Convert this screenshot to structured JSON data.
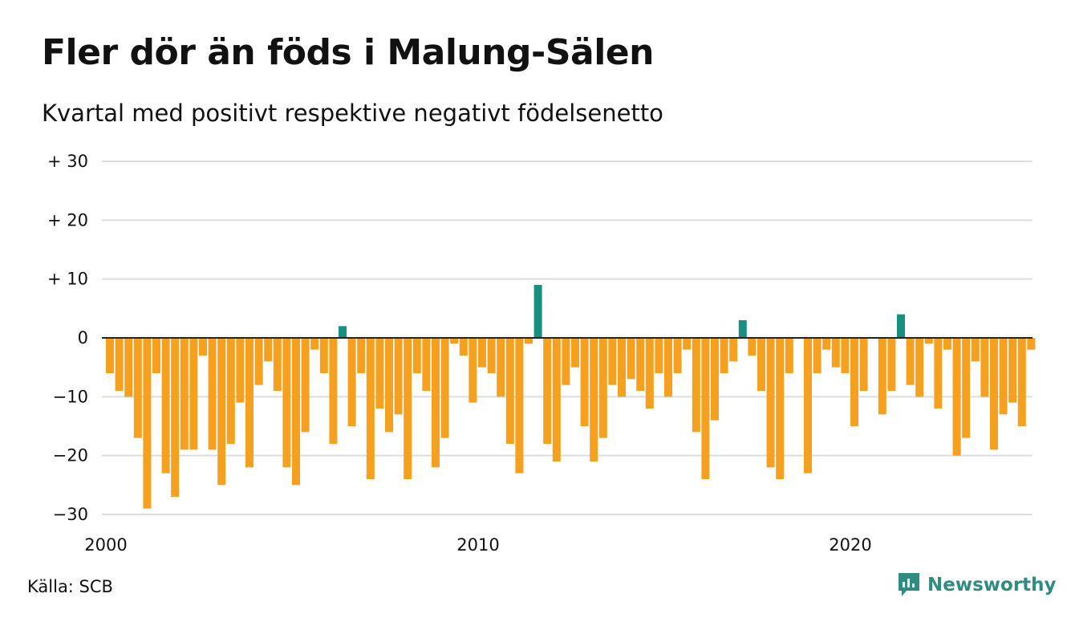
{
  "chart_data": {
    "type": "bar",
    "title": "Fler dör än föds i Malung-Sälen",
    "subtitle": "Kvartal med positivt respektive negativt födelsenetto",
    "x_start": "2000 Q1",
    "x_ticks": [
      "2000",
      "2010",
      "2020"
    ],
    "y_ticks": [
      30,
      20,
      10,
      0,
      -10,
      -20,
      -30
    ],
    "y_tick_labels": [
      "+ 30",
      "+ 20",
      "+ 10",
      "0",
      "−10",
      "−20",
      "−30"
    ],
    "ylim": [
      -30,
      30
    ],
    "grid": true,
    "colors": {
      "positive": "#17907f",
      "negative": "#f5a01e",
      "grid": "#dddddd",
      "zero_line": "#222222"
    },
    "values": [
      -6,
      -9,
      -10,
      -17,
      -29,
      -6,
      -23,
      -27,
      -19,
      -19,
      -3,
      -19,
      -25,
      -18,
      -11,
      -22,
      -8,
      -4,
      -9,
      -22,
      -25,
      -16,
      -2,
      -6,
      -18,
      2,
      -15,
      -6,
      -24,
      -12,
      -16,
      -13,
      -24,
      -6,
      -9,
      -22,
      -17,
      -1,
      -3,
      -11,
      -5,
      -6,
      -10,
      -18,
      -23,
      -1,
      9,
      -18,
      -21,
      -8,
      -5,
      -15,
      -21,
      -17,
      -8,
      -10,
      -7,
      -9,
      -12,
      -6,
      -10,
      -6,
      -2,
      -16,
      -24,
      -14,
      -6,
      -4,
      3,
      -3,
      -9,
      -22,
      -24,
      -6,
      0,
      -23,
      -6,
      -2,
      -5,
      -6,
      -15,
      -9,
      0,
      -13,
      -9,
      4,
      -8,
      -10,
      -1,
      -12,
      -2,
      -20,
      -17,
      -4,
      -10,
      -19,
      -13,
      -11,
      -15,
      -2
    ]
  },
  "source": "Källa: SCB",
  "brand": {
    "name": "Newsworthy",
    "icon": "newsworthy-logo-icon"
  }
}
